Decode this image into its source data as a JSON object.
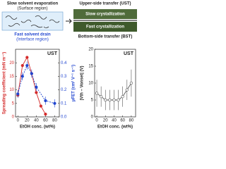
{
  "schematic_left": {
    "top_text": "Slow solvent evaporation",
    "top_sub": "(Surface region)",
    "bottom_text": "Fast solvent drain",
    "bottom_sub": "(Interface region)"
  },
  "schematic_right": {
    "upper": "Upper-side transfer (UST)",
    "slow": "Slow crystallization",
    "fast": "Fast crystallization",
    "bottom": "Bottom-side transfer (BST)"
  },
  "chart_data": [
    {
      "type": "line",
      "annotation": "UST",
      "xlabel": "EtOH conc. (wt%)",
      "ylabel": "Spreading coefficient (mN m⁻¹)",
      "y2label": "μFET (cm² V⁻¹ s⁻¹)",
      "xlim": [
        -5,
        90
      ],
      "xticks": [
        0,
        20,
        40,
        60,
        80
      ],
      "ylim": [
        0,
        25
      ],
      "yticks": [
        0,
        5,
        10,
        15,
        20
      ],
      "y2lim": [
        0,
        0.5
      ],
      "y2ticks": [
        {
          "value": 0,
          "label": "0.0"
        },
        0.1,
        0.2,
        0.3,
        0.4
      ],
      "series": [
        {
          "color": "#d42a2a",
          "x": [
            0,
            10,
            20,
            30,
            40,
            50,
            60
          ],
          "values": [
            8,
            19,
            22,
            16,
            9,
            4,
            1
          ]
        },
        {
          "color": "#2146d0",
          "axis": "y2",
          "x": [
            0,
            10,
            20,
            30,
            40,
            60,
            80
          ],
          "values": [
            0.17,
            0.3,
            0.38,
            0.32,
            0.22,
            0.12,
            0.1
          ],
          "errors": [
            0.03,
            0.03,
            0.03,
            0.03,
            0.03,
            0.03,
            0.03
          ]
        }
      ]
    },
    {
      "type": "line",
      "annotation": "UST",
      "xlabel": "EtOH conc. (wt%)",
      "ylabel": "|Vth – Vonset| (V)",
      "xlim": [
        -5,
        90
      ],
      "xticks": [
        0,
        20,
        40,
        60,
        80
      ],
      "ylim": [
        0,
        20
      ],
      "yticks": [
        0,
        5,
        10,
        15,
        20
      ],
      "series": [
        {
          "color": "#555555",
          "x": [
            0,
            10,
            20,
            30,
            40,
            50,
            60,
            70,
            80
          ],
          "values": [
            7,
            6,
            5,
            5,
            5,
            5,
            6,
            8,
            10
          ],
          "errors": [
            4,
            3,
            3,
            3,
            3,
            3,
            3,
            3,
            4
          ]
        }
      ]
    }
  ]
}
